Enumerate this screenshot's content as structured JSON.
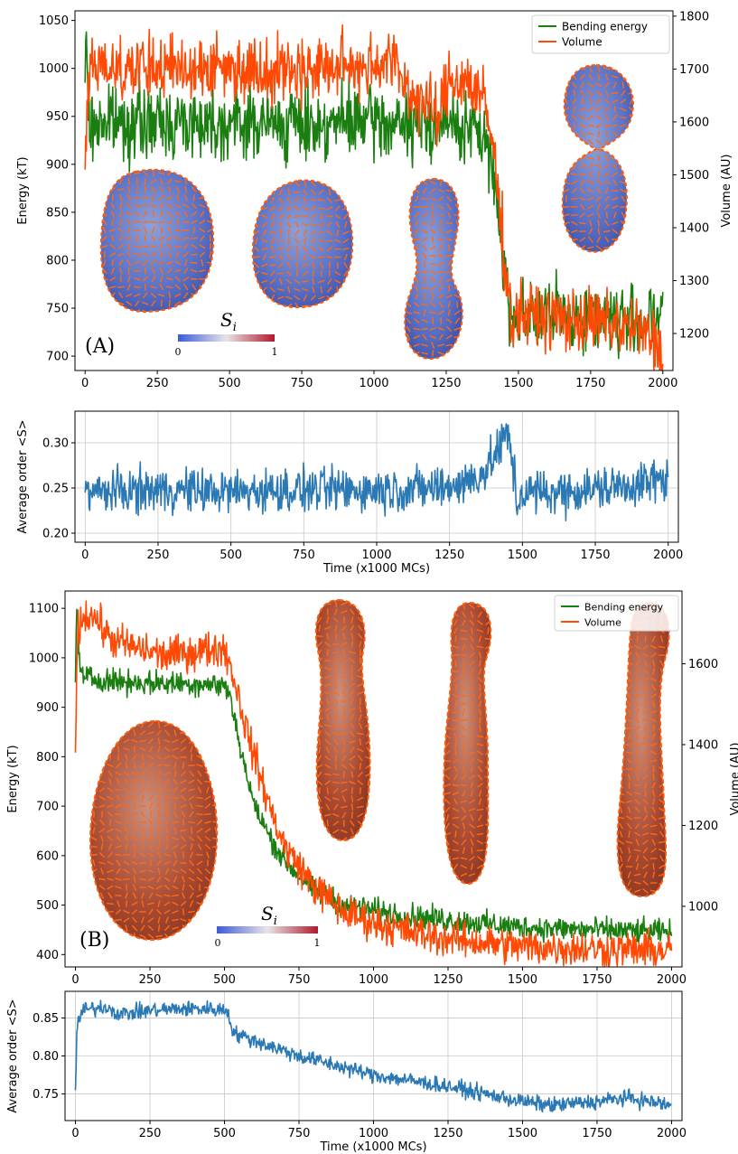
{
  "figure_labels": {
    "panel_a": "(A)",
    "panel_b": "(B)"
  },
  "colorbar": {
    "label": "S",
    "subscript": "i",
    "min_label": "0",
    "max_label": "1",
    "color_low": "#3b5bdb",
    "color_mid": "#e8e4e6",
    "color_high": "#b2182b"
  },
  "colors": {
    "bending": "#1a7f10",
    "volume": "#ff4a05",
    "order": "#2a78b4",
    "membrane_a": "#5c74c8",
    "membrane_b": "#a84a32",
    "director": "#ff6a14"
  },
  "chart_data": [
    {
      "id": "A_top",
      "type": "line",
      "ylabel": "Energy (kT)",
      "y2label": "Volume (AU)",
      "xlim": [
        -35,
        2035
      ],
      "ylim": [
        685,
        1060
      ],
      "y2lim": [
        1130,
        1810
      ],
      "xticks": [
        "0",
        "250",
        "500",
        "750",
        "1000",
        "1250",
        "1500",
        "1750",
        "2000"
      ],
      "yticks": [
        "700",
        "750",
        "800",
        "850",
        "900",
        "950",
        "1000",
        "1050"
      ],
      "y2ticks": [
        "1200",
        "1300",
        "1400",
        "1500",
        "1600",
        "1700",
        "1800"
      ],
      "grid": false,
      "legend_position": "top-right",
      "series": [
        {
          "name": "Bending energy",
          "axis": "left",
          "noise": 18,
          "x": [
            0,
            5,
            15,
            50,
            200,
            400,
            600,
            800,
            1000,
            1100,
            1200,
            1300,
            1380,
            1420,
            1450,
            1470,
            1500,
            1600,
            1700,
            1800,
            1900,
            2000
          ],
          "y": [
            985,
            1030,
            935,
            945,
            942,
            945,
            942,
            942,
            945,
            940,
            945,
            940,
            930,
            880,
            800,
            745,
            745,
            742,
            742,
            740,
            738,
            738
          ]
        },
        {
          "name": "Volume",
          "axis": "right",
          "noise": 30,
          "x": [
            0,
            8,
            30,
            200,
            400,
            600,
            800,
            1000,
            1060,
            1130,
            1180,
            1220,
            1260,
            1320,
            1380,
            1410,
            1440,
            1460,
            1480,
            1500,
            1600,
            1700,
            1800,
            1900,
            1960,
            2000
          ],
          "y": [
            1510,
            1650,
            1710,
            1700,
            1705,
            1700,
            1700,
            1710,
            1720,
            1650,
            1640,
            1600,
            1680,
            1680,
            1640,
            1560,
            1420,
            1290,
            1220,
            1240,
            1230,
            1225,
            1220,
            1210,
            1190,
            1170
          ]
        }
      ],
      "insets_note": ""
    },
    {
      "id": "A_bottom",
      "type": "line",
      "xlabel": "Time (x1000 MCs)",
      "ylabel": "Average order <S>",
      "xlim": [
        -35,
        2035
      ],
      "ylim": [
        0.19,
        0.335
      ],
      "xticks": [
        "0",
        "250",
        "500",
        "750",
        "1000",
        "1250",
        "1500",
        "1750",
        "2000"
      ],
      "yticks": [
        "0.20",
        "0.25",
        "0.30"
      ],
      "grid": true,
      "series": [
        {
          "name": "",
          "noise": 0.012,
          "x": [
            0,
            250,
            500,
            750,
            1000,
            1200,
            1300,
            1380,
            1420,
            1450,
            1470,
            1480,
            1500,
            1600,
            1800,
            2000
          ],
          "y": [
            0.245,
            0.248,
            0.246,
            0.248,
            0.248,
            0.25,
            0.255,
            0.27,
            0.295,
            0.31,
            0.27,
            0.23,
            0.245,
            0.245,
            0.25,
            0.26
          ]
        }
      ]
    },
    {
      "id": "B_top",
      "type": "line",
      "ylabel": "Energy (kT)",
      "y2label": "Volume (AU)",
      "xlim": [
        -35,
        2035
      ],
      "ylim": [
        375,
        1135
      ],
      "y2lim": [
        850,
        1780
      ],
      "xticks": [
        "0",
        "250",
        "500",
        "750",
        "1000",
        "1250",
        "1500",
        "1750",
        "2000"
      ],
      "yticks": [
        "400",
        "500",
        "600",
        "700",
        "800",
        "900",
        "1000",
        "1100"
      ],
      "y2ticks": [
        "1000",
        "1200",
        "1400",
        "1600"
      ],
      "grid": false,
      "legend_position": "top-right",
      "series": [
        {
          "name": "Bending energy",
          "axis": "left",
          "noise": 12,
          "x": [
            0,
            3,
            20,
            100,
            200,
            300,
            400,
            500,
            520,
            560,
            600,
            650,
            700,
            800,
            900,
            1000,
            1100,
            1250,
            1500,
            1750,
            2000
          ],
          "y": [
            950,
            1100,
            960,
            955,
            950,
            948,
            948,
            945,
            920,
            800,
            700,
            640,
            590,
            530,
            500,
            490,
            480,
            470,
            455,
            450,
            445
          ]
        },
        {
          "name": "Volume",
          "axis": "right",
          "noise": 22,
          "x": [
            0,
            8,
            30,
            60,
            120,
            200,
            300,
            400,
            500,
            530,
            580,
            650,
            700,
            800,
            900,
            1000,
            1100,
            1250,
            1500,
            1750,
            2000
          ],
          "y": [
            1380,
            1690,
            1720,
            1720,
            1660,
            1640,
            1620,
            1630,
            1640,
            1570,
            1420,
            1250,
            1150,
            1050,
            985,
            960,
            940,
            920,
            900,
            895,
            890
          ]
        }
      ]
    },
    {
      "id": "B_bottom",
      "type": "line",
      "xlabel": "Time (x1000 MCs)",
      "ylabel": "Average order <S>",
      "xlim": [
        -35,
        2035
      ],
      "ylim": [
        0.715,
        0.885
      ],
      "xticks": [
        "0",
        "250",
        "500",
        "750",
        "1000",
        "1250",
        "1500",
        "1750",
        "2000"
      ],
      "yticks": [
        "0.75",
        "0.80",
        "0.85"
      ],
      "grid": true,
      "series": [
        {
          "name": "",
          "noise": 0.005,
          "x": [
            0,
            5,
            25,
            100,
            150,
            250,
            350,
            450,
            510,
            530,
            750,
            1000,
            1250,
            1500,
            1600,
            1750,
            1850,
            2000
          ],
          "y": [
            0.755,
            0.84,
            0.86,
            0.865,
            0.855,
            0.86,
            0.862,
            0.862,
            0.86,
            0.83,
            0.8,
            0.775,
            0.76,
            0.74,
            0.735,
            0.74,
            0.745,
            0.735
          ]
        }
      ]
    }
  ]
}
